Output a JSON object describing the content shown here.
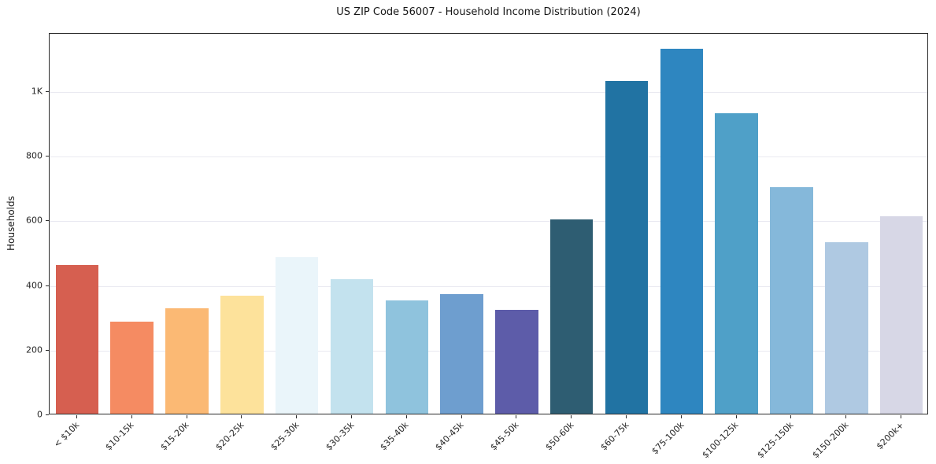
{
  "chart_data": {
    "type": "bar",
    "title": "US ZIP Code 56007 - Household Income Distribution (2024)",
    "xlabel": "",
    "ylabel": "Households",
    "ylim": [
      0,
      1180
    ],
    "grid": true,
    "legend": false,
    "yticks": [
      {
        "value": 0,
        "label": "0"
      },
      {
        "value": 200,
        "label": "200"
      },
      {
        "value": 400,
        "label": "400"
      },
      {
        "value": 600,
        "label": "600"
      },
      {
        "value": 800,
        "label": "800"
      },
      {
        "value": 1000,
        "label": "1K"
      }
    ],
    "categories": [
      "< $10k",
      "$10-15k",
      "$15-20k",
      "$20-25k",
      "$25-30k",
      "$30-35k",
      "$35-40k",
      "$40-45k",
      "$45-50k",
      "$50-60k",
      "$60-75k",
      "$75-100k",
      "$100-125k",
      "$125-150k",
      "$150-200k",
      "$200k+"
    ],
    "values": [
      460,
      285,
      325,
      365,
      485,
      415,
      350,
      370,
      320,
      600,
      1030,
      1130,
      930,
      700,
      530,
      610
    ],
    "colors": [
      "#d65f50",
      "#f58b62",
      "#fbb974",
      "#fde29b",
      "#eaf5fa",
      "#c3e2ee",
      "#8fc3dd",
      "#6e9ecf",
      "#5d5ca9",
      "#2e5d72",
      "#2173a3",
      "#2e86c0",
      "#4fa0c8",
      "#85b8da",
      "#afc9e2",
      "#d7d7e6"
    ]
  }
}
